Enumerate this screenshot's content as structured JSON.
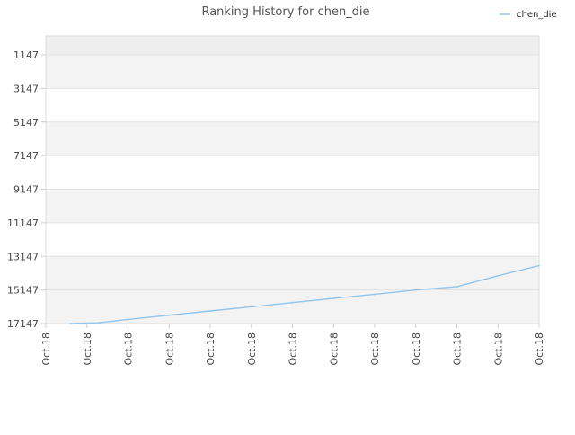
{
  "chart_data": {
    "type": "line",
    "title": "Ranking History for chen_die",
    "xlabel": "",
    "ylabel": "",
    "x_tick_labels": [
      "Oct.18",
      "Oct.18",
      "Oct.18",
      "Oct.18",
      "Oct.18",
      "Oct.18",
      "Oct.18",
      "Oct.18",
      "Oct.18",
      "Oct.18",
      "Oct.18",
      "Oct.18",
      "Oct.18"
    ],
    "y_ticks": [
      1147,
      3147,
      5147,
      7147,
      9147,
      11147,
      13147,
      15147,
      17147
    ],
    "ylim": [
      17147,
      1147
    ],
    "y_inverted": true,
    "grid": true,
    "legend": {
      "position": "top-right"
    },
    "series": [
      {
        "name": "chen_die",
        "color": "#92c5ec",
        "points": [
          {
            "x": 0.6,
            "y": 17147
          },
          {
            "x": 1.3,
            "y": 17100
          },
          {
            "x": 2.0,
            "y": 16900
          },
          {
            "x": 3.0,
            "y": 16650
          },
          {
            "x": 4.0,
            "y": 16400
          },
          {
            "x": 5.0,
            "y": 16150
          },
          {
            "x": 6.0,
            "y": 15900
          },
          {
            "x": 7.0,
            "y": 15650
          },
          {
            "x": 8.0,
            "y": 15400
          },
          {
            "x": 9.0,
            "y": 15150
          },
          {
            "x": 10.0,
            "y": 14950
          },
          {
            "x": 11.0,
            "y": 14300
          },
          {
            "x": 12.0,
            "y": 13700
          }
        ]
      }
    ]
  }
}
